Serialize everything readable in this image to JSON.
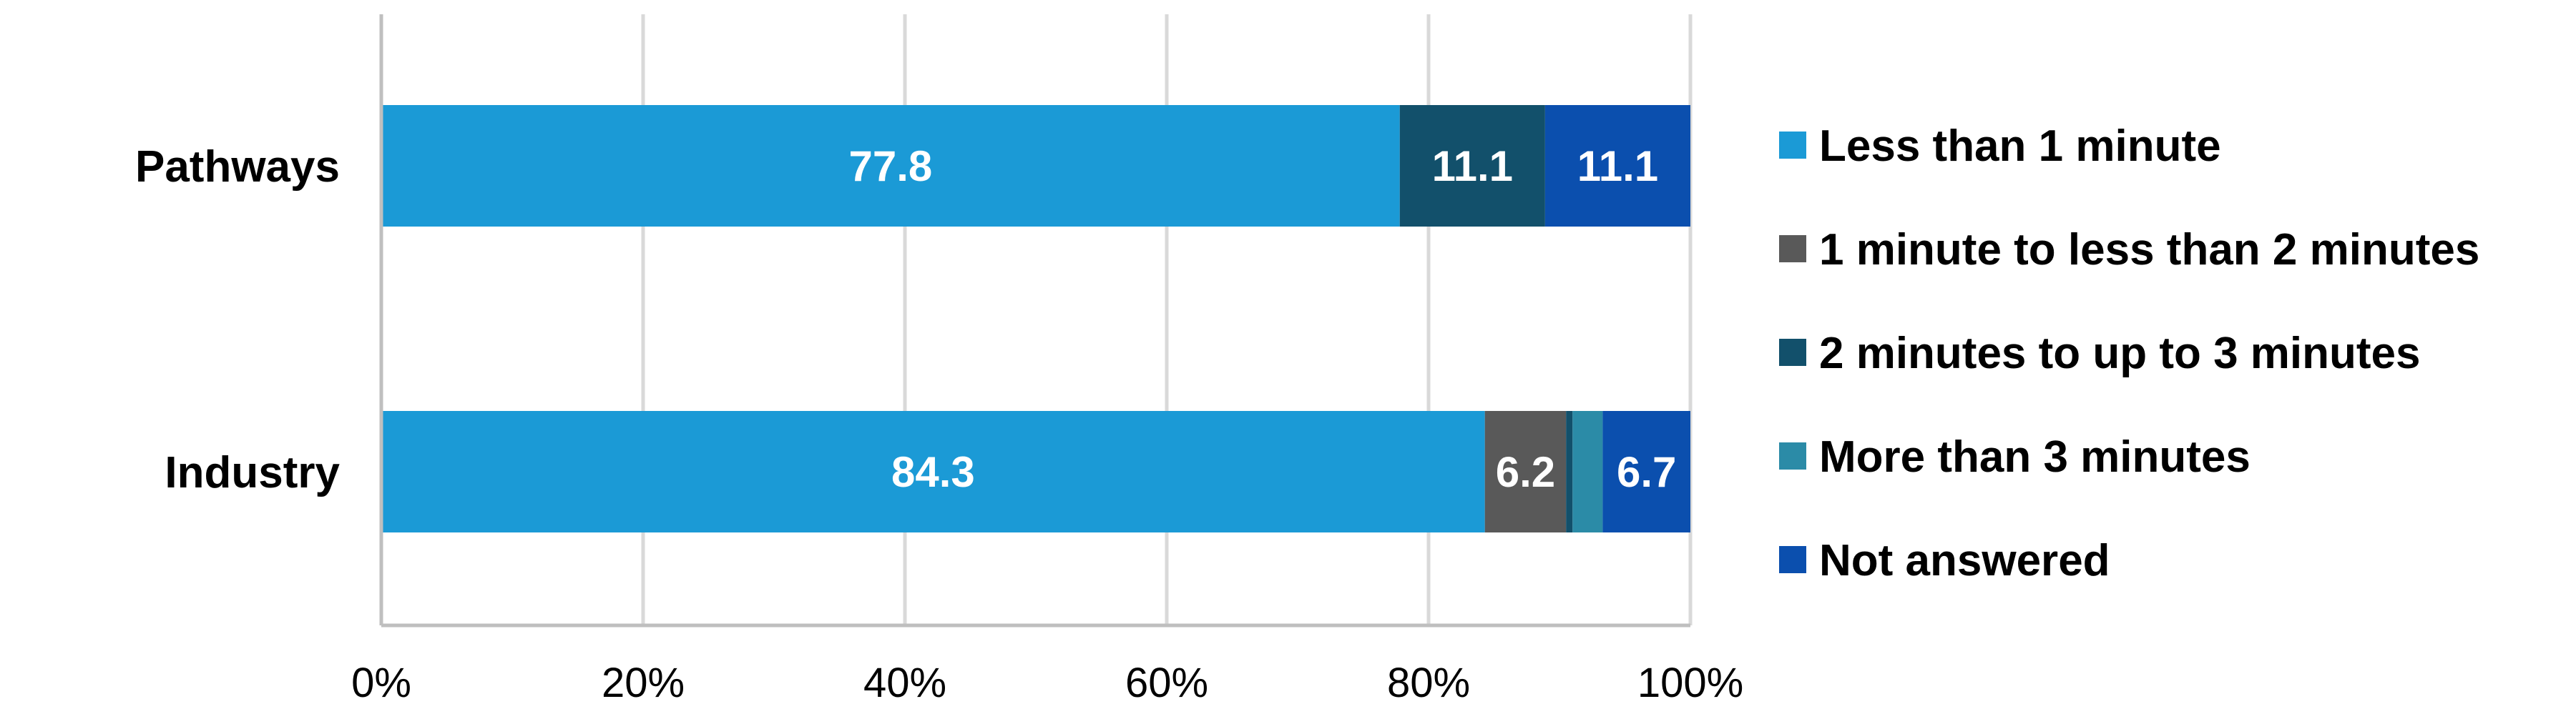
{
  "chart_data": {
    "type": "bar",
    "orientation": "horizontal",
    "stacked": true,
    "categories": [
      "Pathways",
      "Industry"
    ],
    "series": [
      {
        "name": "Less than 1 minute",
        "color": "#1b9ad6",
        "values": [
          77.8,
          84.3
        ],
        "labels": [
          "77.8",
          "84.3"
        ]
      },
      {
        "name": "1 minute to less than 2 minutes",
        "color": "#595959",
        "values": [
          0,
          6.2
        ],
        "labels": [
          "",
          "6.2"
        ]
      },
      {
        "name": "2 minutes to up to 3 minutes",
        "color": "#12506b",
        "values": [
          11.1,
          0.5
        ],
        "labels": [
          "11.1",
          ""
        ]
      },
      {
        "name": "More than 3 minutes",
        "color": "#2b8ba7",
        "values": [
          0,
          2.3
        ],
        "labels": [
          "",
          ""
        ]
      },
      {
        "name": "Not answered",
        "color": "#0b4fae",
        "values": [
          11.1,
          6.7
        ],
        "labels": [
          "11.1",
          "6.7"
        ]
      }
    ],
    "xlim": [
      0,
      100
    ],
    "x_ticks": [
      "0%",
      "20%",
      "40%",
      "60%",
      "80%",
      "100%"
    ],
    "grid": true,
    "legend_position": "right"
  }
}
